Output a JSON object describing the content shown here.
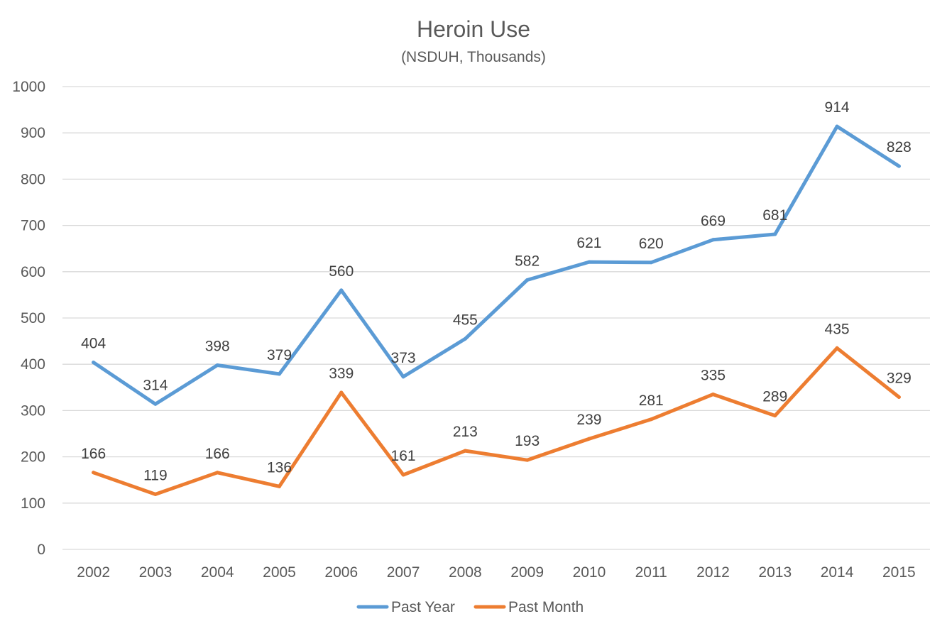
{
  "chart_data": {
    "type": "line",
    "title": "Heroin Use",
    "subtitle": "(NSDUH, Thousands)",
    "xlabel": "",
    "ylabel": "",
    "categories": [
      "2002",
      "2003",
      "2004",
      "2005",
      "2006",
      "2007",
      "2008",
      "2009",
      "2010",
      "2011",
      "2012",
      "2013",
      "2014",
      "2015"
    ],
    "ylim": [
      0,
      1000
    ],
    "yticks": [
      0,
      100,
      200,
      300,
      400,
      500,
      600,
      700,
      800,
      900,
      1000
    ],
    "grid": true,
    "legend_position": "bottom",
    "series": [
      {
        "name": "Past Year",
        "color": "#5b9bd5",
        "values": [
          404,
          314,
          398,
          379,
          560,
          373,
          455,
          582,
          621,
          620,
          669,
          681,
          914,
          828
        ]
      },
      {
        "name": "Past Month",
        "color": "#ed7d31",
        "values": [
          166,
          119,
          166,
          136,
          339,
          161,
          213,
          193,
          239,
          281,
          335,
          289,
          435,
          329
        ]
      }
    ]
  }
}
